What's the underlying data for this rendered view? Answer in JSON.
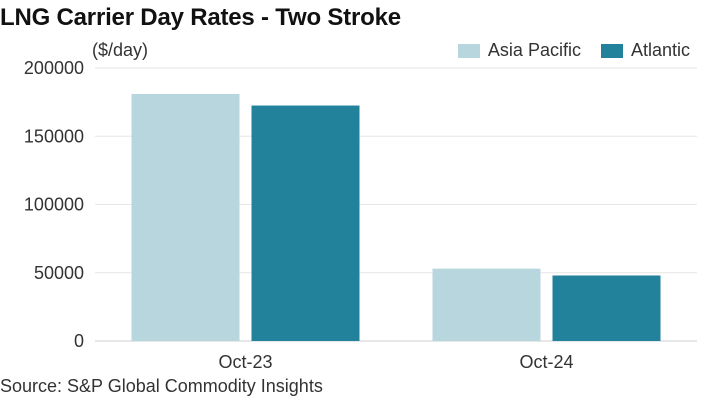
{
  "chart_data": {
    "type": "bar",
    "title": "LNG Carrier Day Rates - Two Stroke",
    "ylabel": "($/day)",
    "categories": [
      "Oct-23",
      "Oct-24"
    ],
    "series": [
      {
        "name": "Asia Pacific",
        "color": "#b7d6dd",
        "values": [
          181000,
          53000
        ]
      },
      {
        "name": "Atlantic",
        "color": "#22829b",
        "values": [
          172500,
          48000
        ]
      }
    ],
    "ylim": [
      0,
      200000
    ],
    "yticks": [
      0,
      50000,
      100000,
      150000,
      200000
    ],
    "ytick_labels": [
      "0",
      "50000",
      "100000",
      "150000",
      "200000"
    ],
    "grid": true,
    "legend_position": "top-right",
    "source": "Source: S&P Global Commodity Insights"
  }
}
